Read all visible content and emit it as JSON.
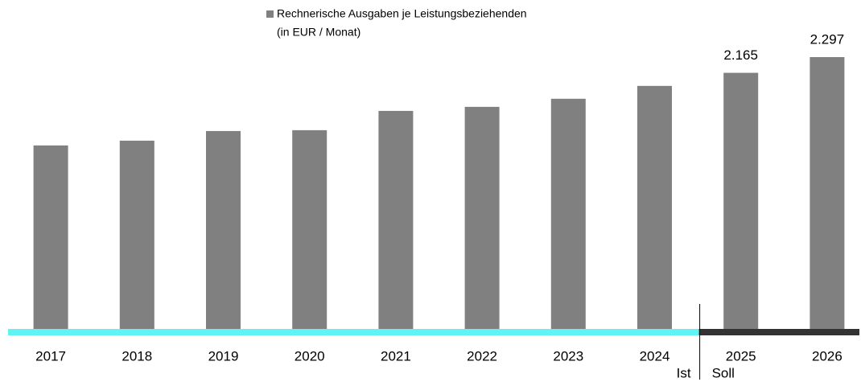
{
  "chart_data": {
    "type": "bar",
    "categories": [
      "2017",
      "2018",
      "2019",
      "2020",
      "2021",
      "2022",
      "2023",
      "2024",
      "2025",
      "2026"
    ],
    "series": [
      {
        "name": "Rechnerische Ausgaben je Leistungsbeziehenden",
        "color": "#808080",
        "values": [
          1555,
          1595,
          1676,
          1683,
          1845,
          1879,
          1947,
          2055,
          2165,
          2297
        ],
        "value_labels": [
          null,
          null,
          null,
          null,
          null,
          null,
          null,
          null,
          "2.165",
          "2.297"
        ]
      }
    ],
    "legend_subtitle": "(in EUR / Monat)",
    "periods": [
      {
        "label": "Ist",
        "color": "#5ff3f3",
        "categories": [
          "2017",
          "2018",
          "2019",
          "2020",
          "2021",
          "2022",
          "2023",
          "2024"
        ]
      },
      {
        "label": "Soll",
        "color": "#333333",
        "categories": [
          "2025",
          "2026"
        ]
      }
    ]
  }
}
